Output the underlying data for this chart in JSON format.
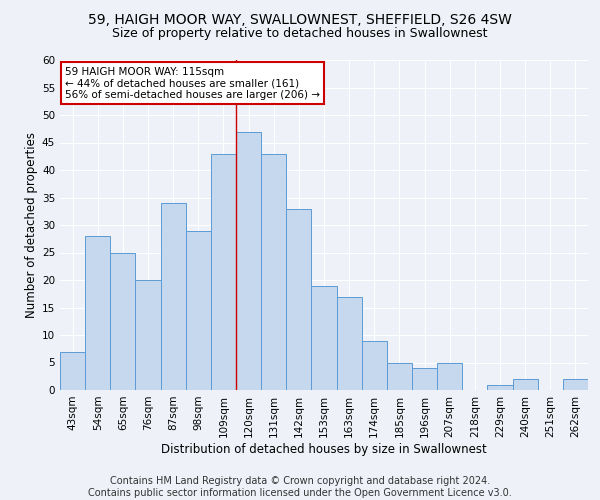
{
  "title": "59, HAIGH MOOR WAY, SWALLOWNEST, SHEFFIELD, S26 4SW",
  "subtitle": "Size of property relative to detached houses in Swallownest",
  "xlabel": "Distribution of detached houses by size in Swallownest",
  "ylabel": "Number of detached properties",
  "categories": [
    "43sqm",
    "54sqm",
    "65sqm",
    "76sqm",
    "87sqm",
    "98sqm",
    "109sqm",
    "120sqm",
    "131sqm",
    "142sqm",
    "153sqm",
    "163sqm",
    "174sqm",
    "185sqm",
    "196sqm",
    "207sqm",
    "218sqm",
    "229sqm",
    "240sqm",
    "251sqm",
    "262sqm"
  ],
  "values": [
    7,
    28,
    25,
    20,
    34,
    29,
    43,
    47,
    43,
    33,
    19,
    17,
    9,
    5,
    4,
    5,
    0,
    1,
    2,
    0,
    2
  ],
  "bar_color": "#c5d8ed",
  "bar_edge_color": "#5b9bd5",
  "annotation_line1": "59 HAIGH MOOR WAY: 115sqm",
  "annotation_line2": "← 44% of detached houses are smaller (161)",
  "annotation_line3": "56% of semi-detached houses are larger (206) →",
  "annotation_box_color": "#ffffff",
  "annotation_box_edge_color": "#cc0000",
  "vline_color": "#cc0000",
  "vline_x": 6.5,
  "footer": "Contains HM Land Registry data © Crown copyright and database right 2024.\nContains public sector information licensed under the Open Government Licence v3.0.",
  "ylim": [
    0,
    60
  ],
  "yticks": [
    0,
    5,
    10,
    15,
    20,
    25,
    30,
    35,
    40,
    45,
    50,
    55,
    60
  ],
  "background_color": "#eef2f8",
  "grid_color": "#ffffff",
  "title_fontsize": 10,
  "subtitle_fontsize": 9,
  "axis_label_fontsize": 8.5,
  "tick_fontsize": 7.5,
  "annotation_fontsize": 7.5,
  "footer_fontsize": 7
}
